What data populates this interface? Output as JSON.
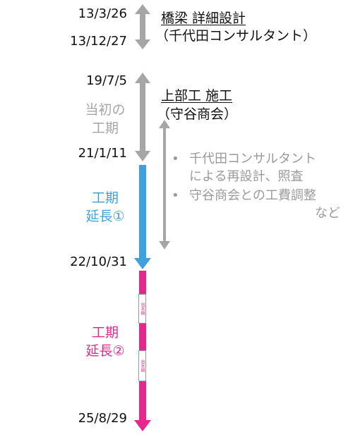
{
  "dates": {
    "d1": "13/3/26",
    "d2": "13/12/27",
    "d3": "19/7/5",
    "d4": "21/1/11",
    "d5": "22/10/31",
    "d6": "25/8/29"
  },
  "phase1": {
    "title": "橋梁 詳細設計",
    "contractor": "（千代田コンサルタント）"
  },
  "phase2": {
    "title": "上部工 施工",
    "contractor": "（守谷商会）"
  },
  "periods": {
    "initial_line1": "当初の",
    "initial_line2": "工期",
    "ext1_line1": "工期",
    "ext1_line2": "延長①",
    "ext2_line1": "工期",
    "ext2_line2": "延長②"
  },
  "notes": {
    "bullet1_line1": "千代田コンサルタント",
    "bullet1_line2": "による再設計、照査",
    "bullet2_line1": "守谷商会との工費調整",
    "bullet2_line2": "など",
    "bullet_char": "•"
  },
  "markers": {
    "marker1": "出水期",
    "marker2": "出水期"
  },
  "colors": {
    "gray": "#a6a6a8",
    "blue": "#3ea0dd",
    "pink": "#e6288a",
    "note_gray": "#9a9a9a"
  }
}
